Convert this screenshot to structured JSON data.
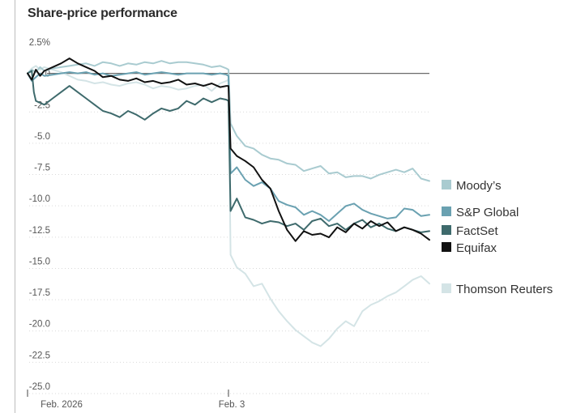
{
  "chart_data": {
    "type": "line",
    "title": "Share-price performance",
    "xlabel": "",
    "ylabel": "",
    "ylim": [
      -25,
      2.5
    ],
    "yticks": [
      {
        "value": 2.5,
        "label": "2.5%"
      },
      {
        "value": 0,
        "label": "0"
      },
      {
        "value": -2.5,
        "label": "-2.5"
      },
      {
        "value": -5,
        "label": "-5.0"
      },
      {
        "value": -7.5,
        "label": "-7.5"
      },
      {
        "value": -10,
        "label": "-10.0"
      },
      {
        "value": -12.5,
        "label": "-12.5"
      },
      {
        "value": -15,
        "label": "-15.0"
      },
      {
        "value": -17.5,
        "label": "-17.5"
      },
      {
        "value": -20,
        "label": "-20.0"
      },
      {
        "value": -22.5,
        "label": "-22.5"
      },
      {
        "value": -25,
        "label": "-25.0"
      }
    ],
    "xlim": [
      0,
      96
    ],
    "xticks": [
      {
        "value": 0,
        "label": "Feb. 2026"
      },
      {
        "value": 48,
        "label": "Feb. 3"
      }
    ],
    "legend_position": "right",
    "series": [
      {
        "name": "Moody’s",
        "color": "#a9cbd0",
        "stroke_width": 2,
        "x": [
          0,
          1,
          2,
          3,
          4,
          6,
          8,
          10,
          12,
          14,
          16,
          18,
          20,
          22,
          24,
          26,
          28,
          30,
          32,
          34,
          36,
          38,
          40,
          42,
          44,
          46,
          47.5,
          48,
          48.5,
          50,
          52,
          54,
          56,
          58,
          60,
          62,
          64,
          66,
          68,
          70,
          72,
          74,
          76,
          78,
          80,
          82,
          84,
          86,
          88,
          90,
          92,
          94,
          96
        ],
        "values": [
          0.0,
          0.3,
          0.1,
          0.5,
          0.2,
          0.4,
          0.5,
          0.6,
          0.7,
          0.8,
          0.6,
          0.9,
          0.8,
          0.6,
          0.8,
          0.7,
          0.9,
          0.8,
          1.0,
          0.8,
          0.9,
          0.9,
          0.8,
          0.7,
          0.5,
          0.6,
          0.4,
          0.3,
          -4.0,
          -5.0,
          -5.8,
          -6.0,
          -6.5,
          -6.8,
          -6.9,
          -7.2,
          -7.3,
          -7.8,
          -7.6,
          -7.4,
          -8.0,
          -7.9,
          -8.3,
          -8.2,
          -8.2,
          -8.4,
          -8.1,
          -7.9,
          -7.7,
          -7.9,
          -7.6,
          -8.4,
          -8.6
        ]
      },
      {
        "name": "S&P Global",
        "color": "#6aa1b1",
        "stroke_width": 2,
        "x": [
          0,
          1,
          2,
          3,
          4,
          6,
          8,
          10,
          12,
          14,
          16,
          18,
          20,
          22,
          24,
          26,
          28,
          30,
          32,
          34,
          36,
          38,
          40,
          42,
          44,
          46,
          47.5,
          48,
          48.5,
          50,
          52,
          54,
          56,
          58,
          60,
          62,
          64,
          66,
          68,
          70,
          72,
          74,
          76,
          78,
          80,
          82,
          84,
          86,
          88,
          90,
          92,
          94,
          96
        ],
        "values": [
          0.0,
          -0.6,
          -0.3,
          0.0,
          -0.2,
          -0.1,
          0.0,
          0.1,
          0.0,
          0.1,
          -0.1,
          0.0,
          -0.2,
          -0.1,
          0.0,
          0.1,
          -0.1,
          0.0,
          0.1,
          0.0,
          -0.1,
          0.0,
          0.0,
          0.0,
          -0.1,
          0.0,
          -0.1,
          -0.2,
          -8.0,
          -7.5,
          -8.5,
          -9.0,
          -8.7,
          -9.2,
          -10.2,
          -10.5,
          -10.7,
          -11.3,
          -11.0,
          -11.3,
          -11.8,
          -11.2,
          -10.6,
          -10.4,
          -10.9,
          -11.2,
          -11.4,
          -11.6,
          -11.5,
          -10.8,
          -10.9,
          -11.4,
          -11.3
        ]
      },
      {
        "name": "FactSet",
        "color": "#3e6a6c",
        "stroke_width": 2,
        "x": [
          0,
          1,
          1.5,
          2,
          4,
          6,
          8,
          10,
          12,
          14,
          16,
          18,
          20,
          22,
          24,
          26,
          28,
          30,
          32,
          34,
          36,
          38,
          40,
          42,
          44,
          46,
          47.5,
          48,
          48.5,
          50,
          52,
          54,
          56,
          58,
          60,
          62,
          64,
          66,
          68,
          70,
          72,
          74,
          76,
          78,
          80,
          82,
          84,
          86,
          88,
          90,
          92,
          94,
          96
        ],
        "values": [
          0.0,
          0.2,
          -1.5,
          -2.2,
          -2.5,
          -2.0,
          -1.5,
          -1.0,
          -1.5,
          -2.0,
          -2.5,
          -3.0,
          -3.2,
          -3.5,
          -3.0,
          -3.3,
          -3.7,
          -3.2,
          -2.8,
          -3.0,
          -2.8,
          -2.2,
          -2.5,
          -2.0,
          -2.3,
          -2.0,
          -2.1,
          -2.2,
          -11.0,
          -10.0,
          -11.5,
          -11.7,
          -12.0,
          -11.8,
          -11.9,
          -12.2,
          -12.0,
          -12.5,
          -11.8,
          -11.6,
          -12.2,
          -12.0,
          -12.5,
          -12.0,
          -11.7,
          -12.3,
          -12.0,
          -12.4,
          -12.6,
          -12.3,
          -12.5,
          -12.7,
          -12.6
        ]
      },
      {
        "name": "Equifax",
        "color": "#111111",
        "stroke_width": 2,
        "x": [
          0,
          1,
          2,
          3,
          4,
          6,
          8,
          10,
          12,
          14,
          16,
          18,
          20,
          22,
          24,
          26,
          28,
          30,
          32,
          34,
          36,
          38,
          40,
          42,
          44,
          46,
          47.5,
          48,
          48.5,
          50,
          52,
          54,
          56,
          58,
          60,
          62,
          64,
          66,
          68,
          70,
          72,
          74,
          76,
          78,
          80,
          82,
          84,
          86,
          88,
          90,
          92,
          94,
          96
        ],
        "values": [
          0.0,
          -0.5,
          0.3,
          -0.2,
          0.2,
          0.5,
          0.8,
          1.2,
          0.8,
          0.5,
          0.2,
          -0.3,
          -0.2,
          -0.5,
          -0.6,
          -0.4,
          -0.7,
          -0.6,
          -0.8,
          -0.7,
          -0.5,
          -0.9,
          -0.8,
          -1.0,
          -0.8,
          -1.1,
          -1.0,
          -1.0,
          -6.0,
          -6.6,
          -7.0,
          -7.5,
          -8.5,
          -9.2,
          -11.0,
          -12.5,
          -13.4,
          -12.6,
          -12.9,
          -12.8,
          -13.1,
          -12.3,
          -12.7,
          -12.0,
          -12.4,
          -11.8,
          -12.2,
          -11.9,
          -12.6,
          -12.3,
          -12.5,
          -12.8,
          -13.3
        ]
      },
      {
        "name": "Thomson Reuters",
        "color": "#d4e4e6",
        "stroke_width": 2,
        "x": [
          0,
          1,
          2,
          3,
          4,
          6,
          8,
          10,
          12,
          14,
          16,
          18,
          20,
          22,
          24,
          26,
          28,
          30,
          32,
          34,
          36,
          38,
          40,
          42,
          44,
          46,
          47.5,
          48,
          48.5,
          50,
          52,
          54,
          56,
          58,
          60,
          62,
          64,
          66,
          68,
          70,
          72,
          74,
          76,
          78,
          80,
          82,
          84,
          86,
          88,
          90,
          92,
          94,
          96
        ],
        "values": [
          0.0,
          0.4,
          0.6,
          0.3,
          0.5,
          0.3,
          0.1,
          -0.2,
          -0.5,
          -0.6,
          -0.8,
          -0.7,
          -0.9,
          -1.0,
          -0.8,
          -0.7,
          -0.9,
          -1.2,
          -1.0,
          -1.1,
          -1.3,
          -1.2,
          -1.0,
          -0.9,
          -1.4,
          -0.8,
          -0.6,
          -0.5,
          -14.5,
          -15.5,
          -16.0,
          -17.0,
          -16.8,
          -18.0,
          -19.0,
          -19.8,
          -20.5,
          -21.0,
          -21.5,
          -21.8,
          -21.2,
          -20.4,
          -19.8,
          -20.2,
          -19.0,
          -18.5,
          -18.2,
          -17.8,
          -17.5,
          -17.0,
          -16.5,
          -16.2,
          -16.8
        ]
      }
    ]
  }
}
